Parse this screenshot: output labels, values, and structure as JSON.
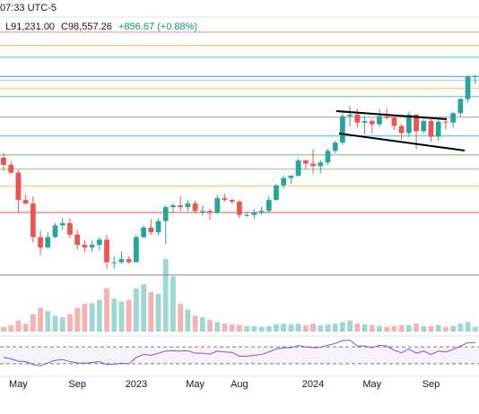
{
  "header": {
    "time": "07:33 UTC-5",
    "low": "L91,231.00",
    "close": "C98,557.26",
    "change": "+856.67 (+0.88%)"
  },
  "chart_data": {
    "type": "candlestick",
    "log_scale": true,
    "ylim": [
      10980,
      175000
    ],
    "categories": [
      null,
      null,
      "May",
      null,
      null,
      null,
      null,
      null,
      null,
      null,
      "Sep",
      null,
      null,
      null,
      null,
      null,
      null,
      null,
      "2023",
      null,
      null,
      null,
      null,
      null,
      null,
      null,
      "May",
      null,
      null,
      null,
      null,
      null,
      "Aug",
      null,
      null,
      null,
      null,
      null,
      null,
      null,
      null,
      null,
      "2024",
      null,
      null,
      null,
      null,
      null,
      null,
      null,
      "May",
      null,
      null,
      null,
      null,
      null,
      null,
      null,
      "Sep",
      null,
      null,
      null,
      null,
      null,
      null
    ],
    "open": [
      45000,
      42000,
      39000,
      30000,
      29000,
      21000,
      19000,
      21000,
      23500,
      24000,
      21500,
      19500,
      19000,
      19500,
      20500,
      16500,
      16500,
      17000,
      16500,
      21000,
      23000,
      22000,
      24500,
      28000,
      28500,
      28000,
      29000,
      27000,
      27000,
      26500,
      30500,
      30000,
      29500,
      26000,
      26000,
      26500,
      27000,
      30000,
      34500,
      37000,
      37800,
      43800,
      42500,
      41500,
      43000,
      48000,
      52000,
      67000,
      68000,
      63000,
      64000,
      62000,
      67000,
      66000,
      61000,
      57000,
      68000,
      58000,
      64000,
      55000,
      63500,
      63000,
      69000,
      79000,
      97700
    ],
    "high": [
      47000,
      43500,
      40000,
      31500,
      31000,
      22500,
      22000,
      24000,
      25200,
      25200,
      22500,
      20400,
      20400,
      21000,
      21500,
      17500,
      18300,
      17500,
      21500,
      23500,
      25000,
      25200,
      28500,
      29000,
      31000,
      30000,
      29800,
      28400,
      27500,
      31400,
      31800,
      30300,
      30000,
      26800,
      27500,
      28100,
      31000,
      35000,
      37900,
      38000,
      44700,
      44000,
      48900,
      44000,
      49000,
      52900,
      69000,
      73800,
      71700,
      67000,
      65000,
      71900,
      72000,
      67000,
      62000,
      70000,
      68500,
      65000,
      65000,
      65500,
      66500,
      69500,
      80000,
      99500,
      99600
    ],
    "low": [
      39500,
      38500,
      26700,
      28700,
      20000,
      17600,
      18800,
      20800,
      22500,
      20800,
      18600,
      18200,
      18200,
      18500,
      15500,
      15500,
      16300,
      16300,
      16500,
      20700,
      21500,
      21400,
      19600,
      26600,
      27000,
      26900,
      26300,
      25800,
      24800,
      26200,
      29500,
      28900,
      25200,
      25400,
      24900,
      26000,
      26600,
      29800,
      33400,
      35000,
      37600,
      40200,
      38500,
      38600,
      42000,
      47000,
      50900,
      60700,
      60000,
      56500,
      56600,
      60600,
      65000,
      58500,
      53500,
      55000,
      49000,
      57000,
      52500,
      53000,
      58900,
      60000,
      66800,
      76500,
      91231
    ],
    "close": [
      42000,
      39000,
      30000,
      29000,
      21000,
      19000,
      21000,
      23500,
      24000,
      21500,
      19500,
      19000,
      19500,
      20500,
      16500,
      16500,
      17000,
      16500,
      21000,
      23000,
      22000,
      24500,
      28000,
      28500,
      28000,
      29000,
      27000,
      27000,
      26500,
      30500,
      30000,
      29500,
      26000,
      26000,
      26500,
      27000,
      30000,
      34500,
      37000,
      37800,
      43800,
      42500,
      41500,
      43000,
      48000,
      52000,
      67000,
      68000,
      63000,
      64000,
      62000,
      67000,
      66000,
      61000,
      57000,
      68000,
      58000,
      64000,
      55000,
      63500,
      63000,
      69000,
      79000,
      97700,
      98557
    ],
    "up_color": "#26a69a",
    "down_color": "#ef5350",
    "volume": [
      6,
      8,
      14,
      10,
      22,
      30,
      26,
      20,
      18,
      22,
      30,
      35,
      36,
      40,
      55,
      42,
      38,
      40,
      55,
      60,
      50,
      48,
      92,
      70,
      35,
      28,
      20,
      18,
      15,
      12,
      10,
      9,
      8,
      7,
      7,
      6,
      7,
      9,
      10,
      9,
      10,
      8,
      10,
      8,
      9,
      10,
      12,
      14,
      10,
      9,
      8,
      7,
      6,
      7,
      8,
      8,
      10,
      7,
      7,
      8,
      6,
      7,
      10,
      12,
      6
    ],
    "volume_lim": [
      0,
      100
    ],
    "rsi": [
      45,
      42,
      36,
      35,
      28,
      25,
      32,
      38,
      40,
      35,
      32,
      31,
      33,
      35,
      28,
      29,
      31,
      30,
      45,
      52,
      50,
      55,
      60,
      61,
      60,
      61,
      55,
      55,
      53,
      60,
      58,
      57,
      48,
      48,
      50,
      52,
      58,
      65,
      68,
      68,
      73,
      70,
      68,
      69,
      74,
      78,
      85,
      86,
      72,
      72,
      68,
      74,
      72,
      62,
      56,
      65,
      55,
      60,
      52,
      60,
      58,
      64,
      72,
      80,
      80
    ],
    "rsi_lim": [
      0,
      100
    ],
    "rsi_levels": [
      70,
      30
    ],
    "rsi_color": "#7e57c2",
    "levels": [
      {
        "value": 150000,
        "color": "#f28b82"
      },
      {
        "value": 132000,
        "color": "#f5b041"
      },
      {
        "value": 118000,
        "color": "#4dd0e1"
      },
      {
        "value": 98000,
        "color": "#5b8def"
      },
      {
        "value": 94500,
        "color": "#90caf9"
      },
      {
        "value": 87400,
        "color": "#ffb74d"
      },
      {
        "value": 80900,
        "color": "#64b5f6"
      },
      {
        "value": 66400,
        "color": "#9e9e9e"
      },
      {
        "value": 55400,
        "color": "#26c6da"
      },
      {
        "value": 46200,
        "color": "#66bb6a"
      },
      {
        "value": 40300,
        "color": "#81c784"
      },
      {
        "value": 34200,
        "color": "#ffb74d"
      },
      {
        "value": 26600,
        "color": "#ef5350"
      },
      {
        "value": 14600,
        "color": "#888888"
      }
    ]
  }
}
